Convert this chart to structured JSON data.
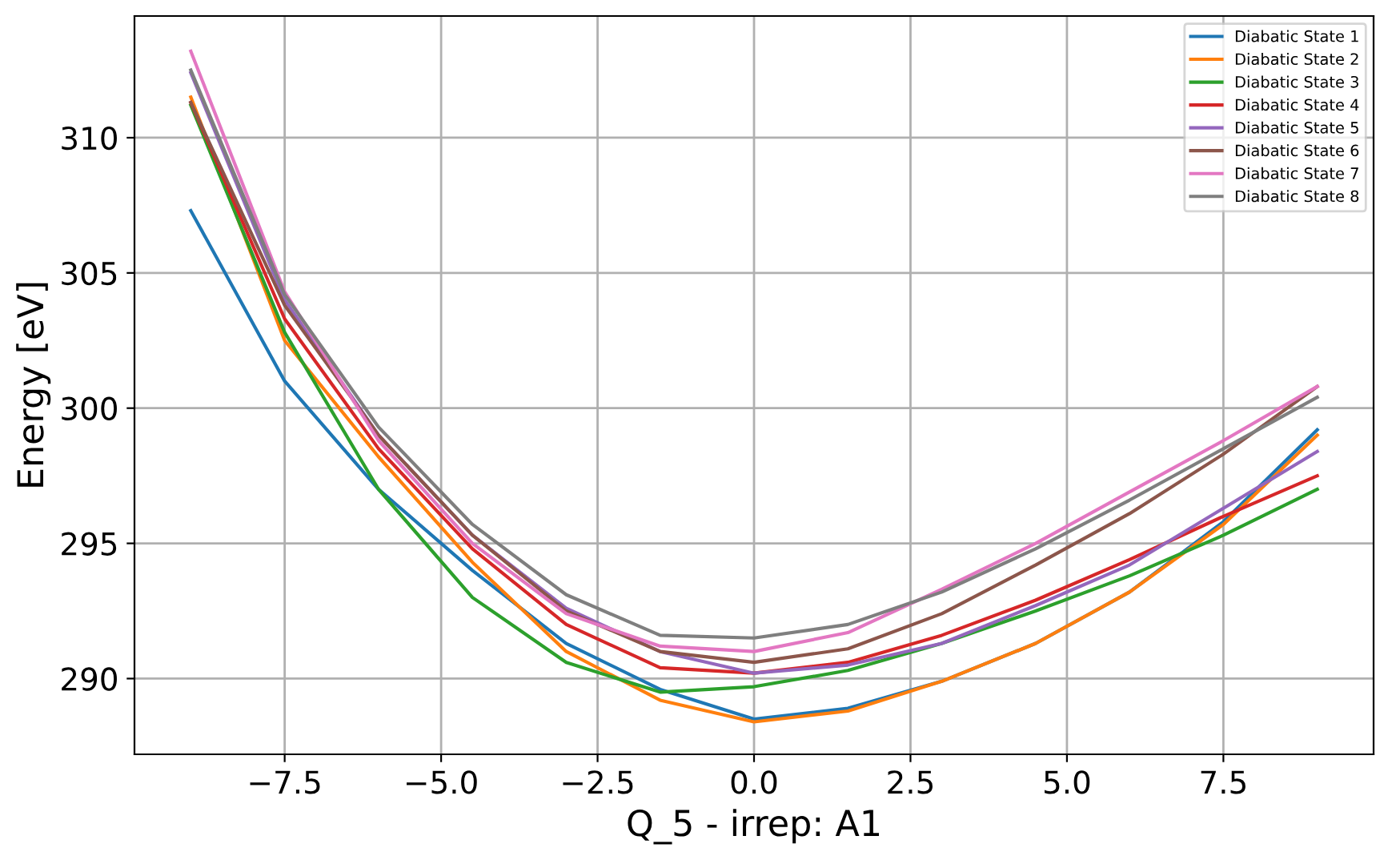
{
  "chart_data": {
    "type": "line",
    "xlabel": "Q_5 - irrep: A1",
    "ylabel": "Energy [eV]",
    "x": [
      -9,
      -7.5,
      -6,
      -4.5,
      -3,
      -1.5,
      0,
      1.5,
      3,
      4.5,
      6,
      7.5,
      9
    ],
    "series": [
      {
        "name": "Diabatic State 1",
        "color": "#1f77b4",
        "values": [
          307.3,
          301.0,
          297.0,
          294.0,
          291.3,
          289.6,
          288.5,
          288.9,
          289.9,
          291.3,
          293.2,
          295.8,
          299.2
        ]
      },
      {
        "name": "Diabatic State 2",
        "color": "#ff7f0e",
        "values": [
          311.5,
          302.5,
          298.2,
          294.3,
          291.0,
          289.2,
          288.4,
          288.8,
          289.9,
          291.3,
          293.2,
          295.7,
          299.0
        ]
      },
      {
        "name": "Diabatic State 3",
        "color": "#2ca02c",
        "values": [
          311.2,
          302.8,
          297.0,
          293.0,
          290.6,
          289.5,
          289.7,
          290.3,
          291.3,
          292.5,
          293.8,
          295.3,
          297.0
        ]
      },
      {
        "name": "Diabatic State 4",
        "color": "#d62728",
        "values": [
          311.3,
          303.3,
          298.5,
          294.8,
          292.0,
          290.4,
          290.2,
          290.6,
          291.6,
          292.9,
          294.4,
          296.0,
          297.5
        ]
      },
      {
        "name": "Diabatic State 5",
        "color": "#9467bd",
        "values": [
          312.4,
          304.0,
          299.0,
          295.3,
          292.6,
          291.0,
          290.2,
          290.5,
          291.3,
          292.7,
          294.2,
          296.3,
          298.4
        ]
      },
      {
        "name": "Diabatic State 6",
        "color": "#8c564b",
        "values": [
          311.3,
          303.8,
          299.0,
          295.3,
          292.5,
          291.0,
          290.6,
          291.1,
          292.4,
          294.2,
          296.1,
          298.3,
          300.8
        ]
      },
      {
        "name": "Diabatic State 7",
        "color": "#e377c2",
        "values": [
          313.2,
          304.3,
          298.8,
          295.0,
          292.4,
          291.2,
          291.0,
          291.7,
          293.3,
          295.0,
          296.9,
          298.8,
          300.8
        ]
      },
      {
        "name": "Diabatic State 8",
        "color": "#7f7f7f",
        "values": [
          312.5,
          304.2,
          299.3,
          295.7,
          293.1,
          291.6,
          291.5,
          292.0,
          293.2,
          294.8,
          296.6,
          298.5,
          300.4
        ]
      }
    ],
    "xlim": [
      -9.9,
      9.9
    ],
    "ylim": [
      287.2,
      314.5
    ],
    "xticks": [
      {
        "value": -7.5,
        "label": "−7.5"
      },
      {
        "value": -5.0,
        "label": "−5.0"
      },
      {
        "value": -2.5,
        "label": "−2.5"
      },
      {
        "value": 0.0,
        "label": "0.0"
      },
      {
        "value": 2.5,
        "label": "2.5"
      },
      {
        "value": 5.0,
        "label": "5.0"
      },
      {
        "value": 7.5,
        "label": "7.5"
      }
    ],
    "yticks": [
      290,
      295,
      300,
      305,
      310
    ],
    "grid": true,
    "legend": "top right"
  }
}
